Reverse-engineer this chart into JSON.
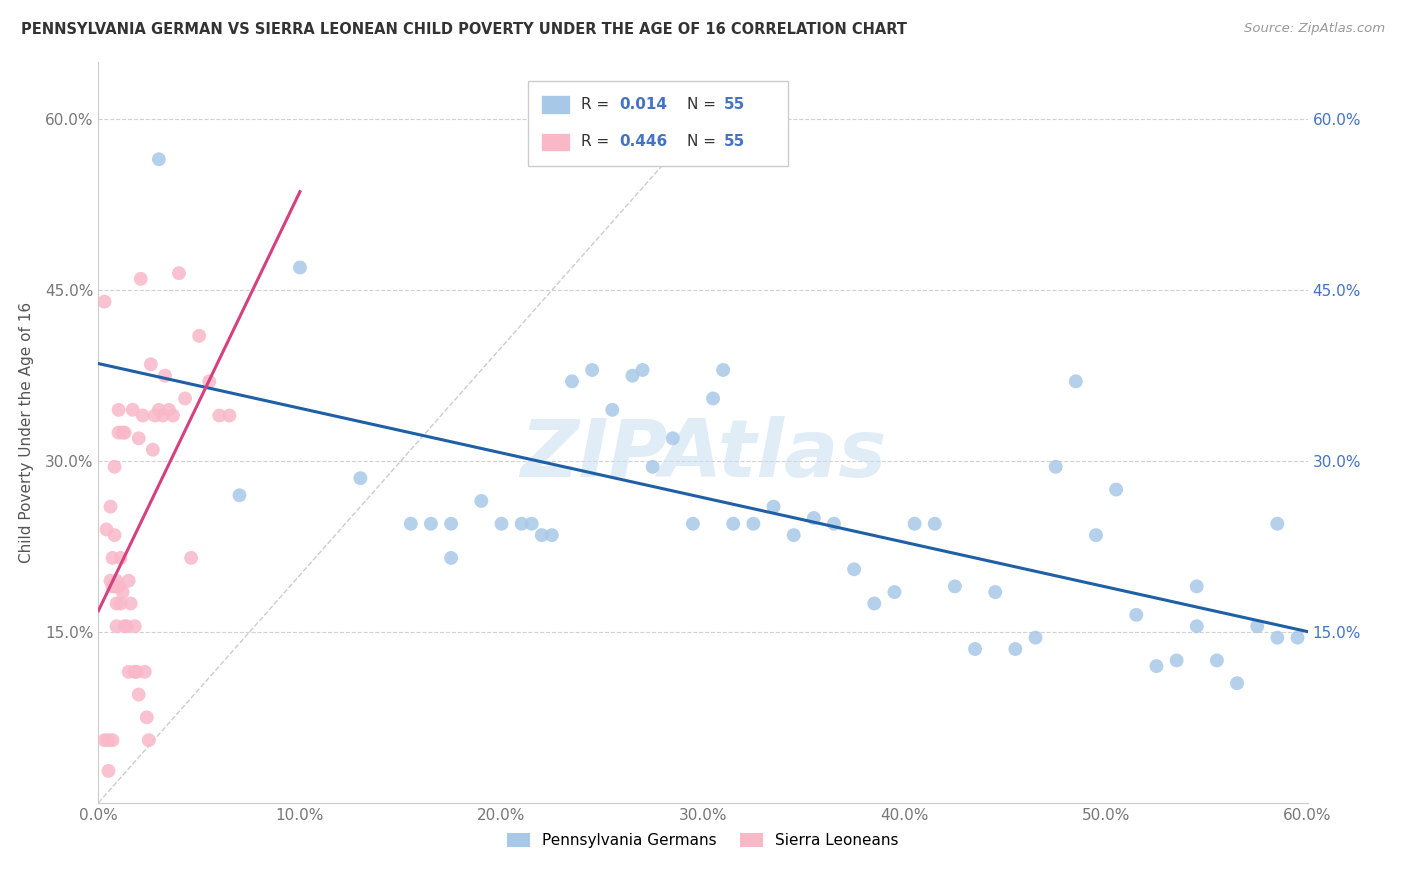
{
  "title": "PENNSYLVANIA GERMAN VS SIERRA LEONEAN CHILD POVERTY UNDER THE AGE OF 16 CORRELATION CHART",
  "source": "Source: ZipAtlas.com",
  "ylabel": "Child Poverty Under the Age of 16",
  "xmin": 0.0,
  "xmax": 0.6,
  "ymin": 0.0,
  "ymax": 0.65,
  "xticks": [
    0.0,
    0.1,
    0.2,
    0.3,
    0.4,
    0.5,
    0.6
  ],
  "yticks": [
    0.0,
    0.15,
    0.3,
    0.45,
    0.6
  ],
  "ytick_labels_left": [
    "",
    "15.0%",
    "30.0%",
    "45.0%",
    "60.0%"
  ],
  "ytick_labels_right": [
    "",
    "15.0%",
    "30.0%",
    "45.0%",
    "60.0%"
  ],
  "xtick_labels": [
    "0.0%",
    "10.0%",
    "20.0%",
    "30.0%",
    "40.0%",
    "50.0%",
    "60.0%"
  ],
  "blue_color": "#a8c8e8",
  "pink_color": "#f9b8c8",
  "blue_line_color": "#1f5fa6",
  "pink_line_color": "#d44080",
  "legend_label_blue": "Pennsylvania Germans",
  "legend_label_pink": "Sierra Leoneans",
  "watermark": "ZIPAtlas",
  "blue_scatter_x": [
    0.03,
    0.07,
    0.1,
    0.13,
    0.155,
    0.165,
    0.175,
    0.175,
    0.19,
    0.2,
    0.21,
    0.215,
    0.22,
    0.225,
    0.235,
    0.245,
    0.255,
    0.265,
    0.27,
    0.275,
    0.285,
    0.295,
    0.305,
    0.31,
    0.315,
    0.325,
    0.335,
    0.345,
    0.355,
    0.365,
    0.375,
    0.385,
    0.395,
    0.405,
    0.415,
    0.425,
    0.435,
    0.445,
    0.455,
    0.465,
    0.475,
    0.485,
    0.495,
    0.505,
    0.515,
    0.525,
    0.535,
    0.545,
    0.555,
    0.565,
    0.575,
    0.585,
    0.595,
    0.545,
    0.585
  ],
  "blue_scatter_y": [
    0.565,
    0.27,
    0.47,
    0.285,
    0.245,
    0.245,
    0.245,
    0.215,
    0.265,
    0.245,
    0.245,
    0.245,
    0.235,
    0.235,
    0.37,
    0.38,
    0.345,
    0.375,
    0.38,
    0.295,
    0.32,
    0.245,
    0.355,
    0.38,
    0.245,
    0.245,
    0.26,
    0.235,
    0.25,
    0.245,
    0.205,
    0.175,
    0.185,
    0.245,
    0.245,
    0.19,
    0.135,
    0.185,
    0.135,
    0.145,
    0.295,
    0.37,
    0.235,
    0.275,
    0.165,
    0.12,
    0.125,
    0.155,
    0.125,
    0.105,
    0.155,
    0.245,
    0.145,
    0.19,
    0.145
  ],
  "pink_scatter_x": [
    0.003,
    0.003,
    0.004,
    0.005,
    0.005,
    0.006,
    0.006,
    0.007,
    0.007,
    0.007,
    0.008,
    0.008,
    0.008,
    0.009,
    0.009,
    0.009,
    0.01,
    0.01,
    0.01,
    0.011,
    0.011,
    0.012,
    0.012,
    0.013,
    0.013,
    0.014,
    0.015,
    0.015,
    0.016,
    0.017,
    0.018,
    0.018,
    0.019,
    0.02,
    0.02,
    0.021,
    0.022,
    0.023,
    0.024,
    0.025,
    0.026,
    0.027,
    0.028,
    0.03,
    0.032,
    0.033,
    0.035,
    0.037,
    0.04,
    0.043,
    0.046,
    0.05,
    0.055,
    0.06,
    0.065
  ],
  "pink_scatter_y": [
    0.44,
    0.055,
    0.24,
    0.055,
    0.028,
    0.26,
    0.195,
    0.215,
    0.19,
    0.055,
    0.295,
    0.235,
    0.19,
    0.195,
    0.175,
    0.155,
    0.345,
    0.325,
    0.19,
    0.215,
    0.175,
    0.325,
    0.185,
    0.325,
    0.155,
    0.155,
    0.115,
    0.195,
    0.175,
    0.345,
    0.115,
    0.155,
    0.115,
    0.095,
    0.32,
    0.46,
    0.34,
    0.115,
    0.075,
    0.055,
    0.385,
    0.31,
    0.34,
    0.345,
    0.34,
    0.375,
    0.345,
    0.34,
    0.465,
    0.355,
    0.215,
    0.41,
    0.37,
    0.34,
    0.34
  ]
}
